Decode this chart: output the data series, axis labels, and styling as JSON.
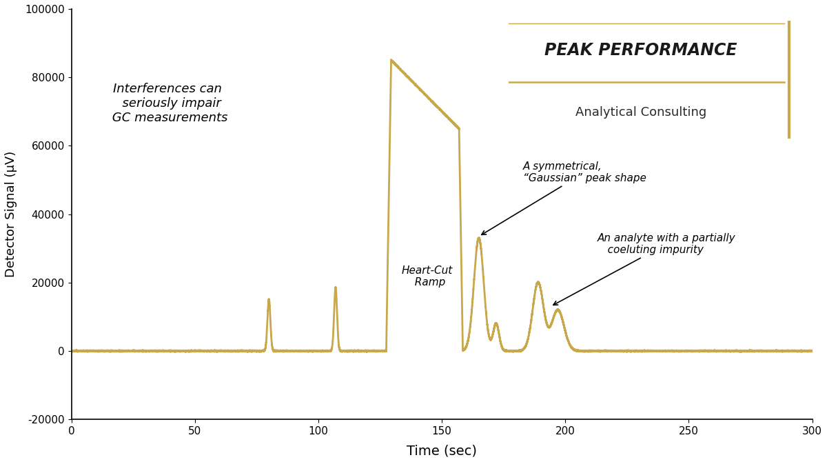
{
  "line_color": "#C8A84B",
  "line_width": 2.0,
  "bg_color": "#ffffff",
  "xlabel": "Time (sec)",
  "ylabel": "Detector Signal (μV)",
  "xlim": [
    0,
    300
  ],
  "ylim": [
    -20000,
    100000
  ],
  "xticks": [
    0,
    50,
    100,
    150,
    200,
    250,
    300
  ],
  "yticks": [
    -20000,
    0,
    20000,
    40000,
    60000,
    80000,
    100000
  ],
  "title_text": "PEAK PERFORMANCE",
  "subtitle_text": "Analytical Consulting",
  "annotation1": "Interferences can\n  seriously impair\n GC measurements",
  "annotation2": "Heart-Cut\n  Ramp",
  "annotation3": "A symmetrical,\n“Gaussian” peak shape",
  "annotation4": "An analyte with a partially\n   coeluting impurity",
  "noise_seed": 42,
  "noise_amplitude": 80
}
